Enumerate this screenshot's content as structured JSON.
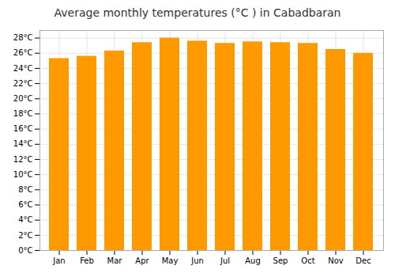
{
  "chart_data": {
    "type": "bar",
    "title": "Average monthly temperatures (°C ) in Cabadbaran",
    "categories": [
      "Jan",
      "Feb",
      "Mar",
      "Apr",
      "May",
      "Jun",
      "Jul",
      "Aug",
      "Sep",
      "Oct",
      "Nov",
      "Dec"
    ],
    "values": [
      25.3,
      25.6,
      26.3,
      27.4,
      28.0,
      27.6,
      27.3,
      27.5,
      27.4,
      27.3,
      26.5,
      26.0
    ],
    "color": "#FF9900",
    "ylim": [
      0,
      29
    ],
    "yticks": [
      {
        "value": 0,
        "label": "0°C"
      },
      {
        "value": 2,
        "label": "2°C"
      },
      {
        "value": 4,
        "label": "4°C"
      },
      {
        "value": 6,
        "label": "6°C"
      },
      {
        "value": 8,
        "label": "8°C"
      },
      {
        "value": 10,
        "label": "10°C"
      },
      {
        "value": 12,
        "label": "12°C"
      },
      {
        "value": 14,
        "label": "14°C"
      },
      {
        "value": 16,
        "label": "16°C"
      },
      {
        "value": 18,
        "label": "18°C"
      },
      {
        "value": 20,
        "label": "20°C"
      },
      {
        "value": 22,
        "label": "22°C"
      },
      {
        "value": 24,
        "label": "24°C"
      },
      {
        "value": 26,
        "label": "26°C"
      },
      {
        "value": 28,
        "label": "28°C"
      }
    ],
    "grid": true
  }
}
